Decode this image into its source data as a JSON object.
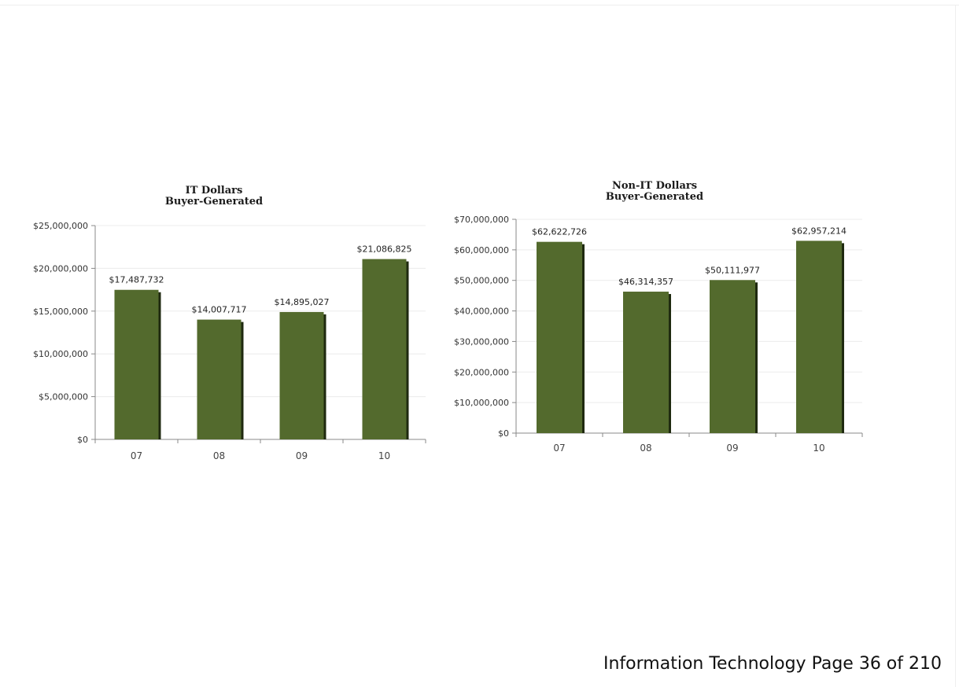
{
  "footer": {
    "text": "Information Technology Page 36 of 210"
  },
  "colors": {
    "bar": "#536a2d",
    "bar_shadow": "#1f2a10",
    "axis": "#888888",
    "grid": "#ececec"
  },
  "chart_data": [
    {
      "type": "bar",
      "title": [
        "IT Dollars",
        "Buyer-Generated"
      ],
      "categories": [
        "07",
        "08",
        "09",
        "10"
      ],
      "values": [
        17487732,
        14007717,
        14895027,
        21086825
      ],
      "data_labels": [
        "$17,487,732",
        "$14,007,717",
        "$14,895,027",
        "$21,086,825"
      ],
      "y_ticks": [
        0,
        5000000,
        10000000,
        15000000,
        20000000,
        25000000
      ],
      "y_tick_labels": [
        "$0",
        "$5,000,000",
        "$10,000,000",
        "$15,000,000",
        "$20,000,000",
        "$25,000,000"
      ],
      "ylim": [
        0,
        25000000
      ],
      "xlabel": "",
      "ylabel": "",
      "grid": true,
      "legend": "none"
    },
    {
      "type": "bar",
      "title": [
        "Non-IT Dollars",
        "Buyer-Generated"
      ],
      "categories": [
        "07",
        "08",
        "09",
        "10"
      ],
      "values": [
        62622726,
        46314357,
        50111977,
        62957214
      ],
      "data_labels": [
        "$62,622,726",
        "$46,314,357",
        "$50,111,977",
        "$62,957,214"
      ],
      "y_ticks": [
        0,
        10000000,
        20000000,
        30000000,
        40000000,
        50000000,
        60000000,
        70000000
      ],
      "y_tick_labels": [
        "$0",
        "$10,000,000",
        "$20,000,000",
        "$30,000,000",
        "$40,000,000",
        "$50,000,000",
        "$60,000,000",
        "$70,000,000"
      ],
      "ylim": [
        0,
        70000000
      ],
      "xlabel": "",
      "ylabel": "",
      "grid": true,
      "legend": "none"
    }
  ]
}
